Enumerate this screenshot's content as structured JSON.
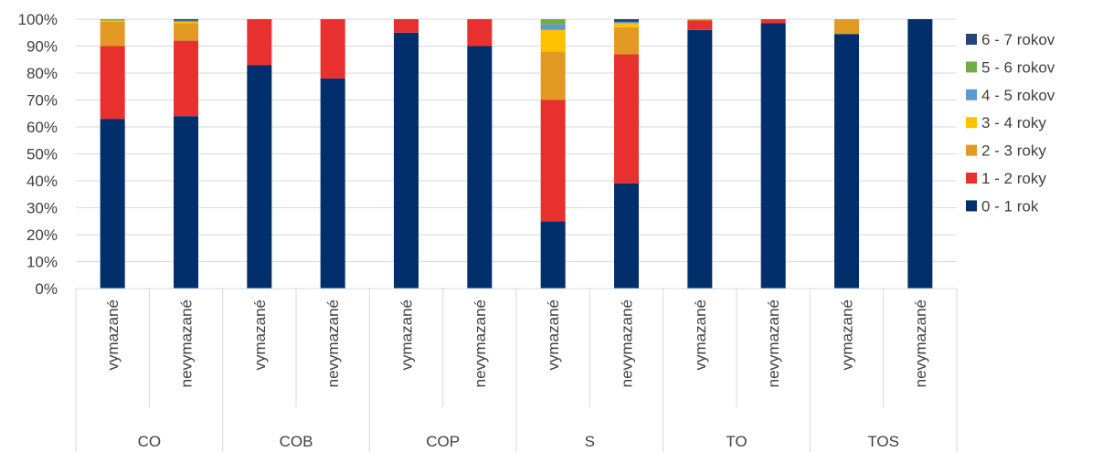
{
  "chart_data": {
    "type": "bar",
    "stacked": true,
    "percent": true,
    "title": "",
    "xlabel": "",
    "ylabel": "",
    "ylim": [
      0,
      100
    ],
    "yticks": [
      "0%",
      "10%",
      "20%",
      "30%",
      "40%",
      "50%",
      "60%",
      "70%",
      "80%",
      "90%",
      "100%"
    ],
    "grid": true,
    "legend_position": "right",
    "groups": [
      {
        "label": "CO",
        "categories": [
          "vymazané",
          "nevymazané"
        ]
      },
      {
        "label": "COB",
        "categories": [
          "vymazané",
          "nevymazané"
        ]
      },
      {
        "label": "COP",
        "categories": [
          "vymazané",
          "nevymazané"
        ]
      },
      {
        "label": "S",
        "categories": [
          "vymazané",
          "nevymazané"
        ]
      },
      {
        "label": "TO",
        "categories": [
          "vymazané",
          "nevymazané"
        ]
      },
      {
        "label": "TOS",
        "categories": [
          "vymazané",
          "nevymazané"
        ]
      }
    ],
    "series": [
      {
        "name": "0 - 1 rok",
        "color": "#002F6C",
        "values": [
          63,
          64,
          83,
          78,
          95,
          90,
          25,
          39,
          96,
          98.5,
          94.5,
          100
        ]
      },
      {
        "name": "1 - 2 roky",
        "color": "#E8302E",
        "values": [
          27,
          28,
          17,
          22,
          5,
          10,
          45,
          48,
          3.5,
          1.5,
          0,
          0
        ]
      },
      {
        "name": "2 - 3 roky",
        "color": "#E39A22",
        "values": [
          9,
          6.5,
          0,
          0,
          0,
          0,
          18,
          10,
          0.5,
          0,
          5.5,
          0
        ]
      },
      {
        "name": "3 - 4 roky",
        "color": "#FFC000",
        "values": [
          0.5,
          0.5,
          0,
          0,
          0,
          0,
          8,
          1.5,
          0,
          0,
          0,
          0
        ]
      },
      {
        "name": "4 - 5 rokov",
        "color": "#5B9BD5",
        "values": [
          0,
          0.5,
          0,
          0,
          0,
          0,
          2,
          0.5,
          0,
          0,
          0,
          0
        ]
      },
      {
        "name": "5 - 6 rokov",
        "color": "#70AD47",
        "values": [
          0.5,
          0,
          0,
          0,
          0,
          0,
          2,
          0,
          0,
          0,
          0,
          0
        ]
      },
      {
        "name": "6 - 7 rokov",
        "color": "#264478",
        "values": [
          0,
          0.5,
          0,
          0,
          0,
          0,
          0,
          1,
          0,
          0,
          0,
          0
        ]
      }
    ]
  }
}
